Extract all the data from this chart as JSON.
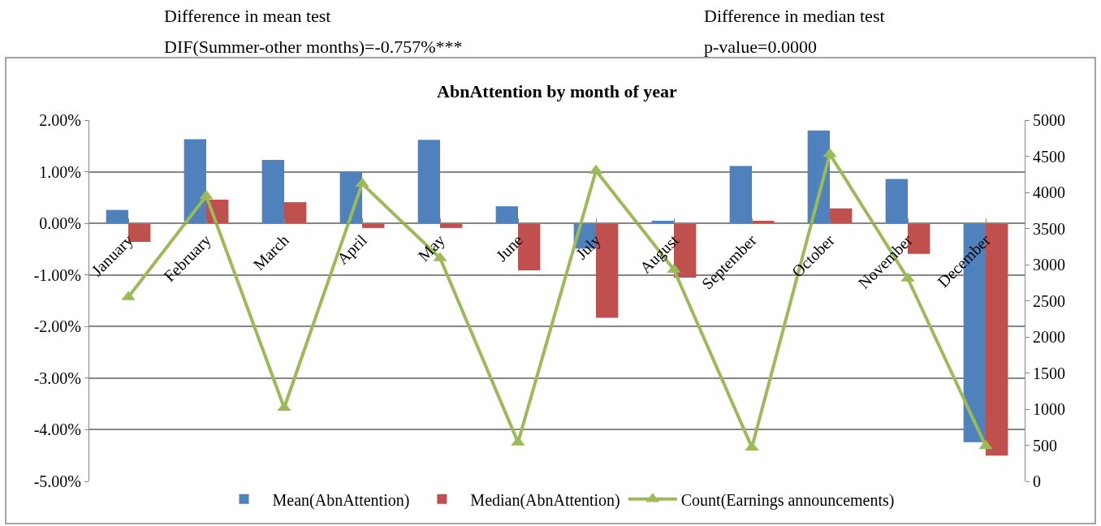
{
  "chart_data": {
    "type": "bar",
    "title": "AbnAttention by month of year",
    "annotations": [
      "Difference in mean test",
      "DIF(Summer-other months)=-0.757%***",
      "Difference in median test",
      "p-value=0.0000"
    ],
    "categories": [
      "January",
      "February",
      "March",
      "April",
      "May",
      "June",
      "July",
      "August",
      "September",
      "October",
      "November",
      "December"
    ],
    "series": [
      {
        "name": "Mean(AbnAttention)",
        "color": "#4f81bd",
        "values": [
          0.26,
          1.63,
          1.23,
          1.0,
          1.62,
          0.33,
          -0.49,
          0.05,
          1.11,
          1.8,
          0.86,
          -4.24
        ]
      },
      {
        "name": "Median(AbnAttention)",
        "color": "#c0504d",
        "values": [
          -0.36,
          0.46,
          0.41,
          -0.09,
          -0.09,
          -0.91,
          -1.83,
          -1.05,
          0.05,
          0.29,
          -0.59,
          -4.5
        ]
      },
      {
        "name": "Count(Earnings announcements)",
        "type": "line",
        "axis": "y2",
        "color": "#9bbb59",
        "marker": "triangle",
        "values": [
          2550,
          3950,
          1020,
          4120,
          3090,
          540,
          4300,
          2930,
          470,
          4530,
          2810,
          490
        ]
      }
    ],
    "ylim": [
      -5,
      2
    ],
    "yticks": [
      {
        "value": -5,
        "label": "-5.00%"
      },
      {
        "value": -4,
        "label": "-4.00%"
      },
      {
        "value": -3,
        "label": "-3.00%"
      },
      {
        "value": -2,
        "label": "-2.00%"
      },
      {
        "value": -1,
        "label": "-1.00%"
      },
      {
        "value": 0,
        "label": "0.00%"
      },
      {
        "value": 1,
        "label": "1.00%"
      },
      {
        "value": 2,
        "label": "2.00%"
      }
    ],
    "y2lim": [
      0,
      5000
    ],
    "y2ticks": [
      0,
      500,
      1000,
      1500,
      2000,
      2500,
      3000,
      3500,
      4000,
      4500,
      5000
    ],
    "grid": "y",
    "legend": "bottom"
  }
}
